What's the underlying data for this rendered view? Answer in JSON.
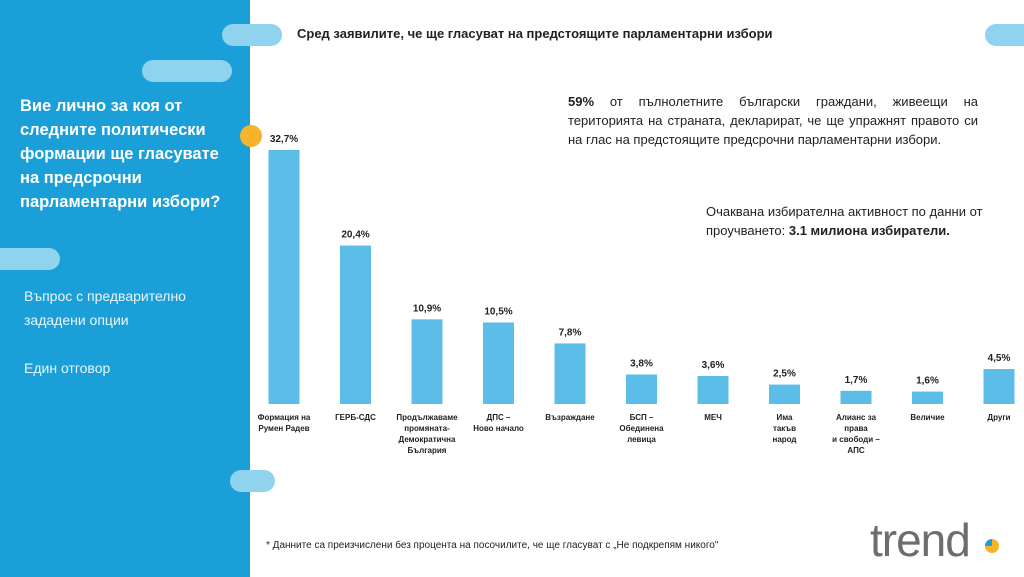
{
  "header": {
    "title": "Сред заявилите, че ще гласуват на предстоящите парламентарни избори"
  },
  "question": {
    "text": "Вие лично за коя от следните политически формации ще гласувате на предсрочни парламентарни избори?",
    "note_1": "Въпрос с предварително зададени опции",
    "note_2": "Един отговор"
  },
  "info": {
    "pct": "59%",
    "text_1": "от пълнолетните български граждани, живеещи на територията на страната, декларират, че ще упражнят правото си на глас на предстоящите предсрочни парламентарни избори.",
    "text_2": "Очаквана избирателна активност по данни от проучването:",
    "text_2_bold": "3.1 милиона избиратели."
  },
  "footnote": "* Данните са преизчислени без процента на посочилите, че ще гласуват с „Не подкрепям никого\"",
  "logo": {
    "text": "trend"
  },
  "colors": {
    "panel": "#1b9fd8",
    "bar": "#5dbde9",
    "accent": "#f6b32b",
    "logo": "#6d6d6d"
  },
  "chart_data": {
    "type": "bar",
    "categories": [
      [
        "Формация на",
        "Румен Радев"
      ],
      [
        "ГЕРБ-СДС"
      ],
      [
        "Продължаваме",
        "промяната-",
        "Демократична",
        "България"
      ],
      [
        "ДПС –",
        "Ново начало"
      ],
      [
        "Възраждане"
      ],
      [
        "БСП –",
        "Обединена",
        "левица"
      ],
      [
        "МЕЧ"
      ],
      [
        "Има",
        "такъв",
        "народ"
      ],
      [
        "Алианс за",
        "права",
        "и свободи –",
        "АПС"
      ],
      [
        "Величие"
      ],
      [
        "Други"
      ]
    ],
    "values": [
      32.7,
      20.4,
      10.9,
      10.5,
      7.8,
      3.8,
      3.6,
      2.5,
      1.7,
      1.6,
      4.5
    ],
    "labels": [
      "32,7%",
      "20,4%",
      "10,9%",
      "10,5%",
      "7,8%",
      "3,8%",
      "3,6%",
      "2,5%",
      "1,7%",
      "1,6%",
      "4,5%"
    ],
    "ylim": [
      0,
      32.7
    ],
    "grid": false,
    "legend": "none"
  }
}
